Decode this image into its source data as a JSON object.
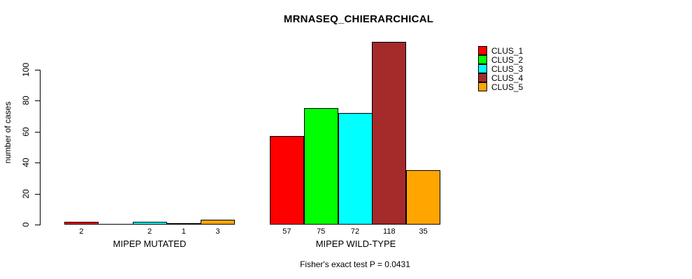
{
  "chart_data": {
    "type": "bar",
    "title": "MRNASEQ_CHIERARCHICAL",
    "ylabel": "number of cases",
    "ylim": [
      0,
      100
    ],
    "yticks": [
      0,
      20,
      40,
      60,
      80,
      100
    ],
    "grid": false,
    "categories": [
      "MIPEP MUTATED",
      "MIPEP WILD-TYPE"
    ],
    "series": [
      {
        "name": "CLUS_1",
        "color": "#FF0000",
        "values": [
          2,
          57
        ]
      },
      {
        "name": "CLUS_2",
        "color": "#00FF00",
        "values": [
          0,
          75
        ]
      },
      {
        "name": "CLUS_3",
        "color": "#00FFFF",
        "values": [
          2,
          72
        ]
      },
      {
        "name": "CLUS_4",
        "color": "#A52A2A",
        "values": [
          1,
          118
        ]
      },
      {
        "name": "CLUS_5",
        "color": "#FFA500",
        "values": [
          3,
          35
        ]
      }
    ],
    "bar_labels": [
      [
        "2",
        "",
        "2",
        "1",
        "3"
      ],
      [
        "57",
        "75",
        "72",
        "118",
        "35"
      ]
    ],
    "legend": {
      "position": "topright",
      "entries": [
        "CLUS_1",
        "CLUS_2",
        "CLUS_3",
        "CLUS_4",
        "CLUS_5"
      ]
    },
    "annotation": "Fisher's exact test P = 0.0431",
    "axis_color": "#000000",
    "background_color": "#FFFFFF"
  }
}
